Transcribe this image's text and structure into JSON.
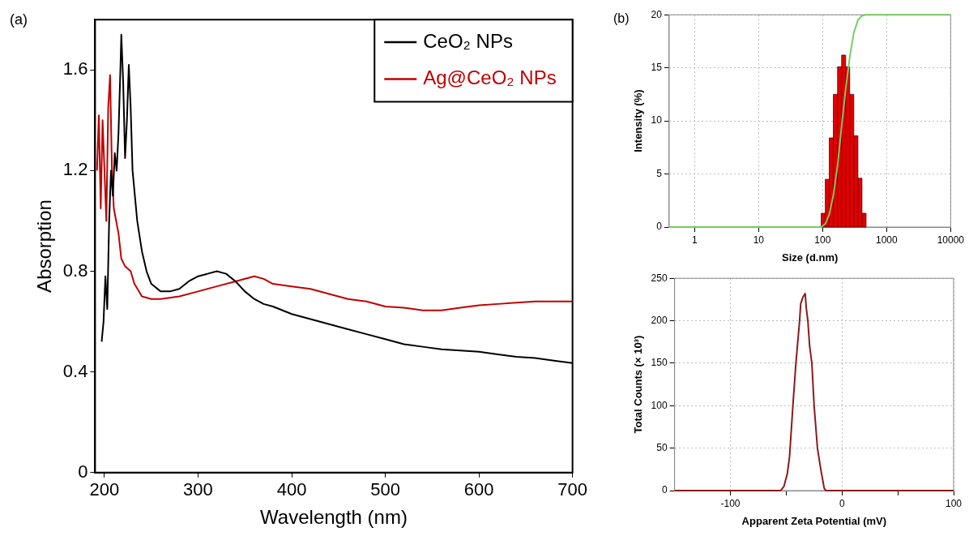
{
  "chart_data": [
    {
      "type": "line",
      "xlabel": "Wavelength (nm)",
      "ylabel": "Absorption",
      "annotations": [
        "(a)"
      ],
      "xlim": [
        190,
        700
      ],
      "ylim": [
        0,
        1.8
      ],
      "xticks": [
        200,
        300,
        400,
        500,
        600,
        700
      ],
      "yticks": [
        0,
        0.4,
        0.8,
        1.2,
        1.6
      ],
      "legend": "top right",
      "series": [
        {
          "name": "CeO₂ NPs",
          "color": "#000000",
          "x": [
            197,
            199,
            201,
            203,
            205,
            207,
            209,
            211,
            213,
            215,
            217,
            218,
            220,
            222,
            224,
            226,
            228,
            230,
            235,
            240,
            245,
            250,
            260,
            270,
            280,
            290,
            300,
            310,
            320,
            330,
            340,
            350,
            360,
            370,
            380,
            400,
            420,
            440,
            460,
            480,
            500,
            520,
            540,
            560,
            580,
            600,
            620,
            640,
            660,
            680,
            700
          ],
          "values": [
            0.52,
            0.6,
            0.78,
            0.65,
            1.0,
            1.2,
            1.1,
            1.27,
            1.2,
            1.35,
            1.6,
            1.74,
            1.55,
            1.25,
            1.4,
            1.62,
            1.45,
            1.2,
            1.0,
            0.88,
            0.8,
            0.75,
            0.72,
            0.72,
            0.73,
            0.76,
            0.78,
            0.79,
            0.8,
            0.79,
            0.76,
            0.72,
            0.69,
            0.67,
            0.66,
            0.63,
            0.61,
            0.59,
            0.57,
            0.55,
            0.53,
            0.51,
            0.5,
            0.49,
            0.485,
            0.48,
            0.47,
            0.46,
            0.455,
            0.445,
            0.435
          ]
        },
        {
          "name": "Ag@CeO₂ NPs",
          "color": "#c00000",
          "x": [
            192,
            194,
            196,
            198,
            200,
            202,
            204,
            206,
            208,
            210,
            215,
            218,
            222,
            228,
            232,
            240,
            250,
            260,
            280,
            300,
            320,
            340,
            360,
            370,
            380,
            400,
            420,
            440,
            460,
            480,
            500,
            520,
            540,
            560,
            580,
            600,
            620,
            640,
            660,
            680,
            700
          ],
          "values": [
            1.2,
            1.42,
            1.05,
            1.4,
            1.2,
            1.0,
            1.45,
            1.58,
            1.2,
            1.05,
            0.95,
            0.85,
            0.82,
            0.8,
            0.75,
            0.7,
            0.69,
            0.69,
            0.7,
            0.72,
            0.74,
            0.76,
            0.78,
            0.77,
            0.75,
            0.74,
            0.73,
            0.71,
            0.69,
            0.68,
            0.66,
            0.655,
            0.645,
            0.645,
            0.655,
            0.665,
            0.67,
            0.675,
            0.68,
            0.68,
            0.68
          ]
        }
      ]
    },
    {
      "type": "histogram",
      "xlabel": "Size (d.nm)",
      "ylabel": "Intensity (%)",
      "annotations": [
        "(b)"
      ],
      "log": "x",
      "grid": true,
      "xlim": [
        0.4,
        10000
      ],
      "ylim": [
        0,
        20
      ],
      "xticks": [
        1,
        10,
        100,
        1000,
        10000
      ],
      "yticks": [
        0,
        5,
        10,
        15,
        20
      ],
      "color": "#e00000",
      "bins": [
        95,
        110,
        127,
        147,
        171,
        198,
        229,
        265,
        307,
        356,
        412,
        477
      ],
      "values": [
        1.3,
        4.5,
        8.4,
        12.5,
        15.1,
        16.2,
        15.1,
        12.5,
        8.6,
        4.6,
        1.3
      ],
      "series": [
        {
          "type": "line",
          "color": "#77cc66",
          "x": [
            0.4,
            95,
            110,
            127,
            147,
            171,
            198,
            229,
            265,
            307,
            356,
            412,
            477,
            10000
          ],
          "values": [
            0,
            0,
            0.3,
            1.2,
            3,
            5.8,
            9.5,
            13,
            16,
            18.3,
            19.5,
            19.9,
            20,
            20
          ]
        }
      ]
    },
    {
      "type": "line",
      "xlabel": "Apparent Zeta Potential (mV)",
      "ylabel": "Total Counts (× 10³)",
      "grid": true,
      "xlim": [
        -150,
        100
      ],
      "ylim": [
        0,
        250
      ],
      "xticks": [
        {
          "value": -100,
          "label": "-100"
        },
        {
          "value": -50,
          "label": null
        },
        0,
        {
          "value": 50,
          "label": null
        },
        100
      ],
      "yticks": [
        0,
        50,
        100,
        150,
        200,
        250
      ],
      "series": [
        {
          "color": "#8b1a1a",
          "x": [
            -150,
            -55,
            -52,
            -49,
            -47,
            -46.5,
            -44,
            -41.3,
            -38,
            -37,
            -35,
            -33,
            -32,
            -30.6,
            -29,
            -27,
            -25,
            -22,
            -19,
            -16,
            -14.6,
            100
          ],
          "values": [
            0,
            0,
            5,
            20,
            40,
            50,
            100,
            150,
            200,
            220,
            228,
            232,
            215,
            200,
            170,
            150,
            100,
            50,
            25,
            3,
            0,
            0
          ]
        }
      ]
    }
  ]
}
